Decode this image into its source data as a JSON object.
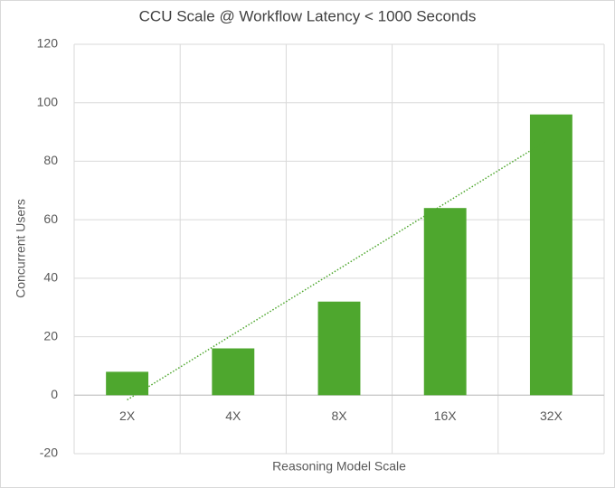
{
  "chart_data": {
    "type": "bar",
    "title": "CCU Scale @ Workflow Latency < 1000 Seconds",
    "x_label": "Reasoning Model Scale",
    "y_label": "Concurrent Users",
    "categories": [
      "2X",
      "4X",
      "8X",
      "16X",
      "32X"
    ],
    "values": [
      8,
      16,
      32,
      64,
      96
    ],
    "color": "#4ea72e",
    "ylim": [
      -20,
      120
    ],
    "yticks": [
      -20,
      0,
      20,
      40,
      60,
      80,
      100,
      120
    ],
    "grid": true,
    "trendline": "linear"
  }
}
